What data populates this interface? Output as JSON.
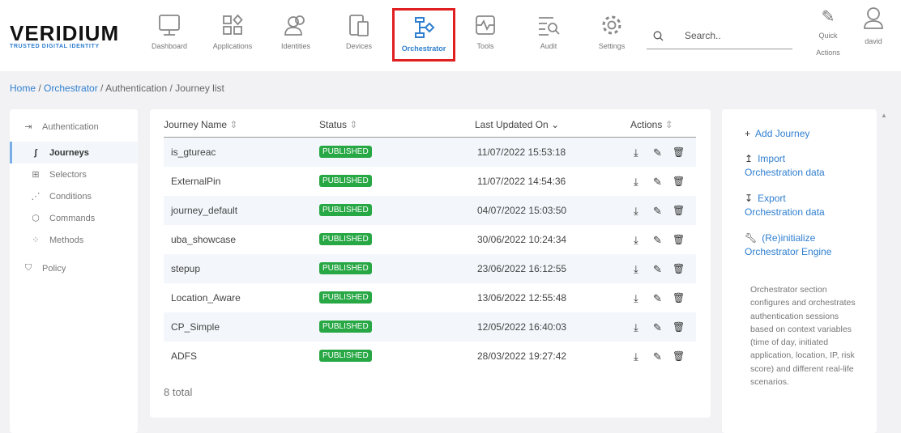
{
  "brand": {
    "name": "VERIDIUM",
    "tagline": "TRUSTED DIGITAL IDENTITY"
  },
  "nav": [
    {
      "label": "Dashboard",
      "icon": "monitor-icon"
    },
    {
      "label": "Applications",
      "icon": "apps-icon"
    },
    {
      "label": "Identities",
      "icon": "users-icon"
    },
    {
      "label": "Devices",
      "icon": "devices-icon"
    },
    {
      "label": "Orchestrator",
      "icon": "flow-icon",
      "active": true
    },
    {
      "label": "Tools",
      "icon": "tools-icon"
    },
    {
      "label": "Audit",
      "icon": "audit-icon"
    },
    {
      "label": "Settings",
      "icon": "gear-icon"
    }
  ],
  "search": {
    "placeholder": "Search.."
  },
  "quick_actions": {
    "line1": "Quick",
    "line2": "Actions"
  },
  "user": {
    "name": "david"
  },
  "breadcrumb": [
    "Home",
    "Orchestrator",
    "Authentication",
    "Journey list"
  ],
  "sidebar": {
    "section": "Authentication",
    "items": [
      "Journeys",
      "Selectors",
      "Conditions",
      "Commands",
      "Methods"
    ],
    "policy": "Policy"
  },
  "table": {
    "headers": [
      "Journey Name",
      "Status",
      "Last Updated On",
      "Actions"
    ],
    "rows": [
      [
        "is_gtureac",
        "PUBLISHED",
        "11/07/2022 15:53:18"
      ],
      [
        "ExternalPin",
        "PUBLISHED",
        "11/07/2022 14:54:36"
      ],
      [
        "journey_default",
        "PUBLISHED",
        "04/07/2022 15:03:50"
      ],
      [
        "uba_showcase",
        "PUBLISHED",
        "30/06/2022 10:24:34"
      ],
      [
        "stepup",
        "PUBLISHED",
        "23/06/2022 16:12:55"
      ],
      [
        "Location_Aware",
        "PUBLISHED",
        "13/06/2022 12:55:48"
      ],
      [
        "CP_Simple",
        "PUBLISHED",
        "12/05/2022 16:40:03"
      ],
      [
        "ADFS",
        "PUBLISHED",
        "28/03/2022 19:27:42"
      ]
    ],
    "total": "8 total"
  },
  "right": {
    "add": "Add Journey",
    "import1": "Import",
    "import2": "Orchestration data",
    "export1": "Export",
    "export2": "Orchestration data",
    "reinit1": "(Re)initialize",
    "reinit2": "Orchestrator Engine",
    "description": "Orchestrator section configures and orchestrates authentication sessions based on context variables (time of day, initiated application, location, IP, risk score) and different real-life scenarios."
  },
  "colors": {
    "accent": "#2f7fd0",
    "published": "#28a745",
    "highlight": "#e02020"
  }
}
